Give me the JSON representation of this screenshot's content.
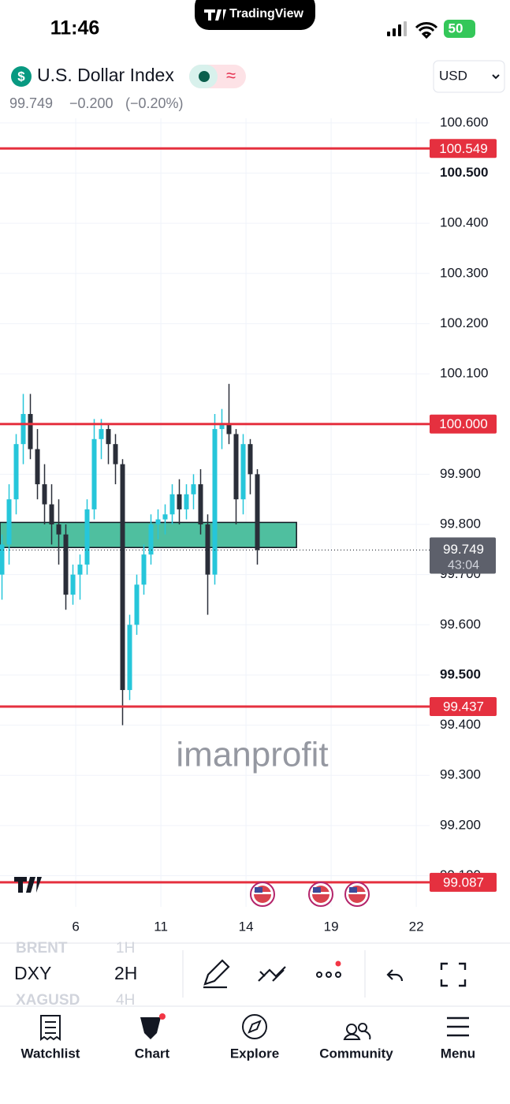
{
  "status_bar": {
    "time": "11:46",
    "app": "TradingView",
    "battery": "50"
  },
  "header": {
    "symbol_name": "U.S. Dollar Index",
    "price": "99.749",
    "change": "−0.200",
    "change_pct": "(−0.20%)",
    "currency": "USD"
  },
  "chart_data": {
    "type": "candlestick",
    "watermark": "imanprofit",
    "up_color": "#26c6da",
    "down_color": "#2a2e39",
    "x": [
      -2.6,
      -2.35,
      -2.1,
      -1.85,
      -1.6,
      -1.35,
      -1.1,
      -0.85,
      -0.6,
      -0.35,
      -0.1,
      0.15,
      0.4,
      0.65,
      0.9,
      1.15,
      1.4,
      1.65,
      1.9,
      2.15,
      2.4,
      2.65,
      2.9,
      3.15,
      3.4,
      3.65,
      3.9,
      4.15,
      4.4,
      4.65,
      4.9,
      5.15,
      5.4,
      5.65,
      5.9,
      6.15,
      6.4
    ],
    "open": [
      99.7,
      99.76,
      99.85,
      99.96,
      100.02,
      99.95,
      99.88,
      99.84,
      99.8,
      99.78,
      99.66,
      99.7,
      99.72,
      99.83,
      99.97,
      99.99,
      99.96,
      99.92,
      99.47,
      99.6,
      99.68,
      99.74,
      99.8,
      99.81,
      99.82,
      99.86,
      99.83,
      99.86,
      99.88,
      99.8,
      99.7,
      99.99,
      100.0,
      99.98,
      99.85,
      99.96,
      99.9
    ],
    "high": [
      99.78,
      99.88,
      99.98,
      100.06,
      100.06,
      99.99,
      99.92,
      99.88,
      99.85,
      99.8,
      99.72,
      99.74,
      99.85,
      100.01,
      100.01,
      100.0,
      99.98,
      99.93,
      99.62,
      99.7,
      99.76,
      99.82,
      99.83,
      99.84,
      99.88,
      99.89,
      99.88,
      99.9,
      99.91,
      99.82,
      100.02,
      100.03,
      100.08,
      99.99,
      99.98,
      99.97,
      99.91
    ],
    "low": [
      99.65,
      99.72,
      99.82,
      99.92,
      99.93,
      99.85,
      99.8,
      99.76,
      99.72,
      99.63,
      99.64,
      99.65,
      99.7,
      99.81,
      99.93,
      99.92,
      99.88,
      99.4,
      99.45,
      99.58,
      99.66,
      99.72,
      99.77,
      99.78,
      99.8,
      99.8,
      99.81,
      99.83,
      99.78,
      99.62,
      99.68,
      99.95,
      99.96,
      99.8,
      99.82,
      99.86,
      99.72
    ],
    "close": [
      99.76,
      99.85,
      99.96,
      100.02,
      99.95,
      99.88,
      99.84,
      99.8,
      99.78,
      99.66,
      99.7,
      99.72,
      99.83,
      99.97,
      99.99,
      99.96,
      99.92,
      99.47,
      99.6,
      99.68,
      99.74,
      99.8,
      99.81,
      99.82,
      99.86,
      99.83,
      99.86,
      99.88,
      99.8,
      99.7,
      99.99,
      100.0,
      99.98,
      99.85,
      99.96,
      99.9,
      99.749
    ],
    "xlim": [
      -2.67,
      12.47
    ],
    "xticks": [
      {
        "value": 0,
        "label": "6"
      },
      {
        "value": 3,
        "label": "11"
      },
      {
        "value": 6,
        "label": "14"
      },
      {
        "value": 9,
        "label": "19"
      },
      {
        "value": 12,
        "label": "22"
      }
    ],
    "ylim": [
      99.038,
      100.727
    ],
    "yticks": [
      {
        "value": 99.1,
        "label": "99.100"
      },
      {
        "value": 99.2,
        "label": "99.200"
      },
      {
        "value": 99.3,
        "label": "99.300"
      },
      {
        "value": 99.4,
        "label": "99.400"
      },
      {
        "value": 99.5,
        "label": "99.500",
        "bold": true
      },
      {
        "value": 99.6,
        "label": "99.600"
      },
      {
        "value": 99.7,
        "label": "99.700"
      },
      {
        "value": 99.8,
        "label": "99.800"
      },
      {
        "value": 99.9,
        "label": "99.900"
      },
      {
        "value": 100.0,
        "label": "100.000"
      },
      {
        "value": 100.1,
        "label": "100.100"
      },
      {
        "value": 100.2,
        "label": "100.200"
      },
      {
        "value": 100.3,
        "label": "100.300"
      },
      {
        "value": 100.4,
        "label": "100.400"
      },
      {
        "value": 100.5,
        "label": "100.500",
        "bold": true
      },
      {
        "value": 100.6,
        "label": "100.600"
      }
    ],
    "grid": true,
    "levels": [
      {
        "value": 100.549,
        "label": "100.549",
        "color": "#e5303f"
      },
      {
        "value": 100.0,
        "label": "100.000",
        "color": "#e5303f"
      },
      {
        "value": 99.437,
        "label": "99.437",
        "color": "#e5303f"
      },
      {
        "value": 99.087,
        "label": "99.087",
        "color": "#e5303f"
      }
    ],
    "zone": {
      "from": 99.754,
      "to": 99.804,
      "x_end": 7.78,
      "color": "#4fbf9f"
    },
    "last": {
      "value": 99.749,
      "countdown": "43:04",
      "color": "#5d606b"
    }
  },
  "toolbar": {
    "symbol": "DXY",
    "interval": "2H",
    "prev_symbol": "BRENT",
    "next_symbol": "XAGUSD",
    "prev_interval": "1H",
    "next_interval": "4H"
  },
  "nav": {
    "items": [
      "Watchlist",
      "Chart",
      "Explore",
      "Community",
      "Menu"
    ]
  }
}
